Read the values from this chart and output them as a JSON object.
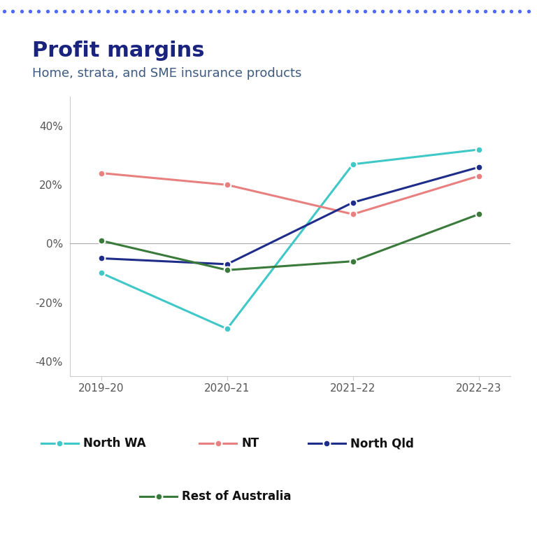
{
  "title": "Profit margins",
  "subtitle": "Home, strata, and SME insurance products",
  "x_labels": [
    "2019–20",
    "2020–21",
    "2021–22",
    "2022–23"
  ],
  "series": {
    "North WA": {
      "values": [
        -0.1,
        -0.29,
        0.27,
        0.32
      ],
      "color": "#40C8C8",
      "marker": "o"
    },
    "NT": {
      "values": [
        0.24,
        0.2,
        0.1,
        0.23
      ],
      "color": "#E88080",
      "marker": "o"
    },
    "North Qld": {
      "values": [
        -0.05,
        -0.07,
        0.14,
        0.26
      ],
      "color": "#1F2D8A",
      "marker": "o"
    },
    "Rest of Australia": {
      "values": [
        0.01,
        -0.09,
        -0.06,
        0.1
      ],
      "color": "#3A7A3A",
      "marker": "o"
    }
  },
  "ylim": [
    -0.45,
    0.5
  ],
  "yticks": [
    -0.4,
    -0.2,
    0.0,
    0.2,
    0.4
  ],
  "ytick_labels": [
    "-40%",
    "-20%",
    "0%",
    "20%",
    "40%"
  ],
  "title_color": "#1a237e",
  "subtitle_color": "#3d5a80",
  "title_fontsize": 22,
  "subtitle_fontsize": 13,
  "tick_fontsize": 11,
  "legend_fontsize": 12,
  "background_color": "#ffffff",
  "dot_border_color": "#ffffff",
  "zero_line_color": "#aaaaaa",
  "dots_top_color": "#3d5afe",
  "series_order": [
    "North WA",
    "NT",
    "North Qld",
    "Rest of Australia"
  ],
  "legend_row1": [
    "North WA",
    "NT",
    "North Qld"
  ],
  "legend_row2": [
    "Rest of Australia"
  ]
}
